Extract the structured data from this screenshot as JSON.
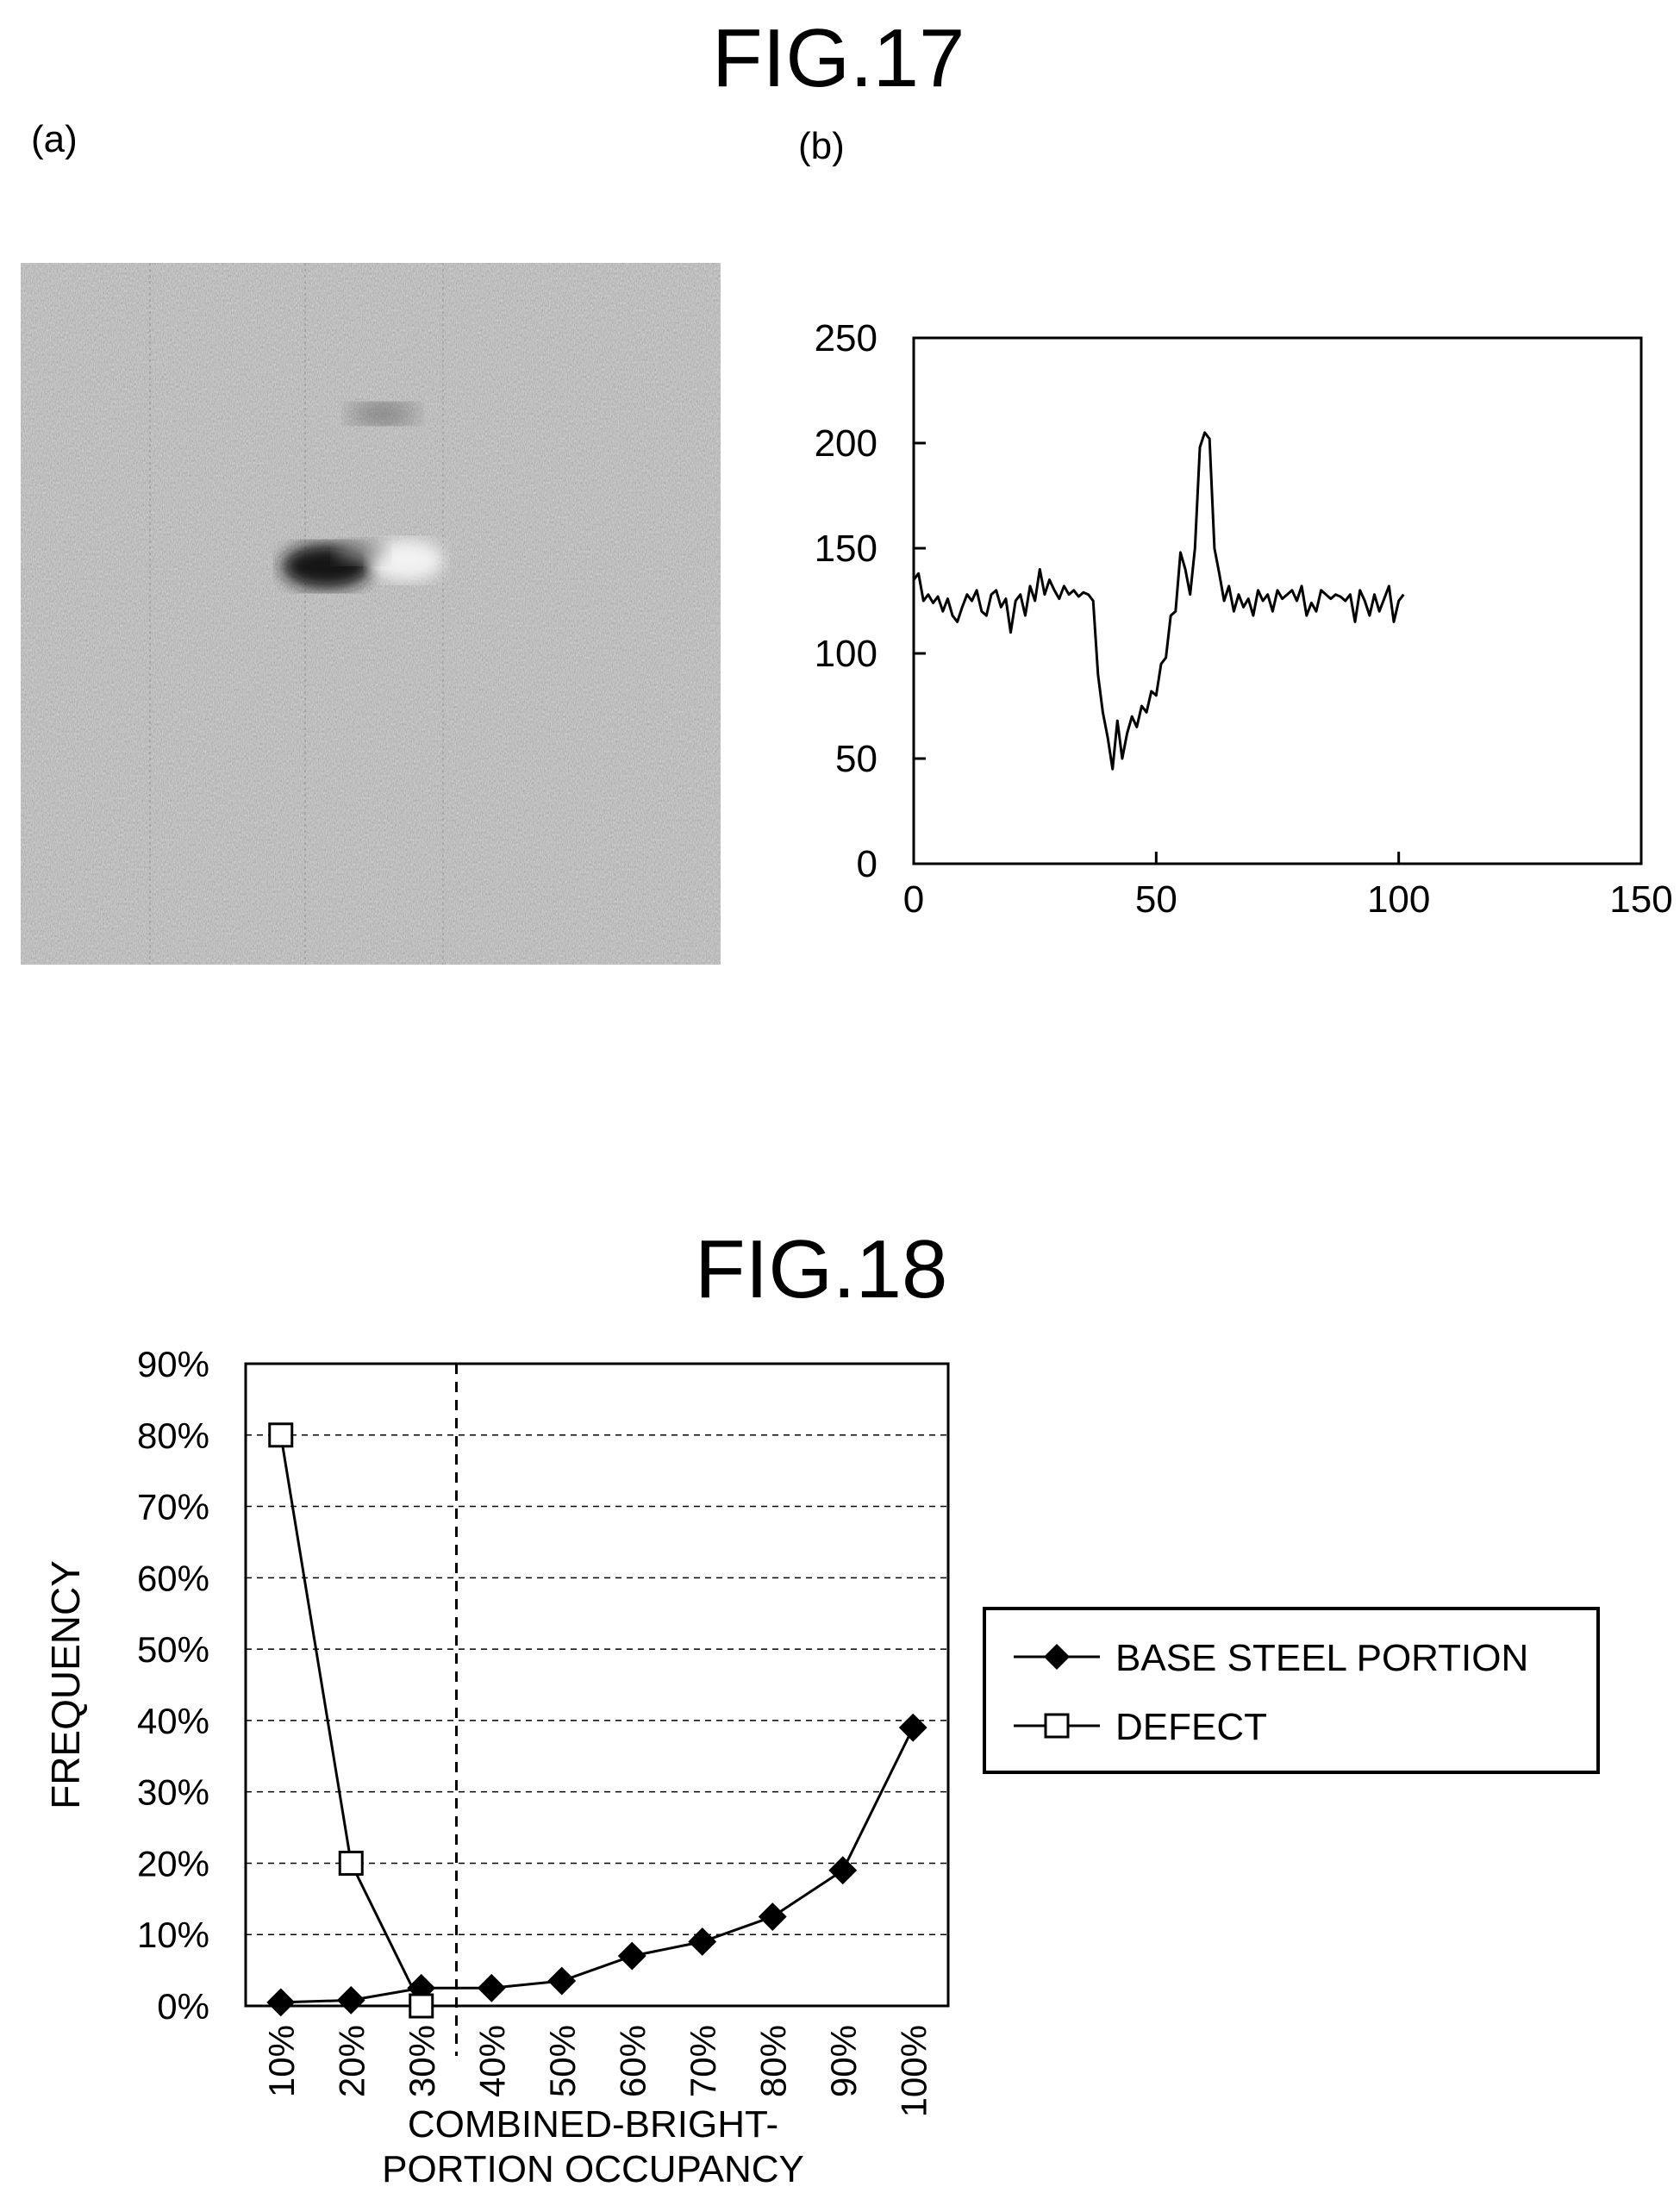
{
  "fig17": {
    "title": "FIG.17",
    "panel_a_label": "(a)",
    "panel_b_label": "(b)"
  },
  "fig18": {
    "title": "FIG.18"
  },
  "chart_data": [
    {
      "type": "line",
      "title": "",
      "xlabel": "",
      "ylabel": "",
      "xlim": [
        0,
        150
      ],
      "ylim": [
        0,
        250
      ],
      "x_ticks": [
        "0",
        "50",
        "100",
        "150"
      ],
      "y_ticks": [
        "0",
        "50",
        "100",
        "150",
        "200",
        "250"
      ],
      "grid": false,
      "series": [
        {
          "x": [
            0,
            1,
            2,
            3,
            4,
            5,
            6,
            7,
            8,
            9,
            10,
            11,
            12,
            13,
            14,
            15,
            16,
            17,
            18,
            19,
            20,
            21,
            22,
            23,
            24,
            25,
            26,
            27,
            28,
            29,
            30,
            31,
            32,
            33,
            34,
            35,
            36,
            37,
            38,
            39,
            40,
            41,
            42,
            43,
            44,
            45,
            46,
            47,
            48,
            49,
            50,
            51,
            52,
            53,
            54,
            55,
            56,
            57,
            58,
            59,
            60,
            61,
            62,
            63,
            64,
            65,
            66,
            67,
            68,
            69,
            70,
            71,
            72,
            73,
            74,
            75,
            76,
            77,
            78,
            79,
            80,
            81,
            82,
            83,
            84,
            85,
            86,
            87,
            88,
            89,
            90,
            91,
            92,
            93,
            94,
            95,
            96,
            97,
            98,
            99,
            100,
            101
          ],
          "y": [
            135,
            138,
            125,
            128,
            124,
            127,
            120,
            126,
            118,
            115,
            122,
            128,
            125,
            130,
            120,
            118,
            128,
            130,
            122,
            126,
            110,
            125,
            128,
            118,
            132,
            125,
            140,
            128,
            135,
            130,
            126,
            132,
            128,
            130,
            127,
            129,
            128,
            125,
            90,
            72,
            60,
            45,
            68,
            50,
            62,
            70,
            65,
            75,
            72,
            82,
            80,
            95,
            98,
            118,
            120,
            148,
            140,
            128,
            150,
            198,
            205,
            202,
            150,
            138,
            125,
            132,
            120,
            128,
            122,
            126,
            118,
            130,
            125,
            128,
            120,
            130,
            126,
            128,
            130,
            125,
            132,
            118,
            124,
            120,
            130,
            128,
            126,
            128,
            127,
            125,
            128,
            115,
            130,
            125,
            118,
            128,
            120,
            126,
            132,
            115,
            125,
            128
          ]
        }
      ]
    },
    {
      "type": "line",
      "title": "",
      "xlabel": "COMBINED-BRIGHT-PORTION OCCUPANCY",
      "xlabel_lines": [
        "COMBINED-BRIGHT-",
        "PORTION OCCUPANCY"
      ],
      "ylabel": "FREQUENCY",
      "categories": [
        "10%",
        "20%",
        "30%",
        "40%",
        "50%",
        "60%",
        "70%",
        "80%",
        "90%",
        "100%"
      ],
      "y_ticks": [
        "0%",
        "10%",
        "20%",
        "30%",
        "40%",
        "50%",
        "60%",
        "70%",
        "80%",
        "90%"
      ],
      "ylim": [
        0,
        90
      ],
      "grid": true,
      "threshold_x": 35,
      "legend_position": "right",
      "series": [
        {
          "name": "BASE STEEL PORTION",
          "marker": "filled-diamond",
          "values": [
            0.5,
            0.8,
            2.5,
            2.5,
            3.5,
            7,
            9,
            12.5,
            19,
            39
          ]
        },
        {
          "name": "DEFECT",
          "marker": "open-square",
          "values": [
            80,
            20,
            0,
            null,
            null,
            null,
            null,
            null,
            null,
            null
          ]
        }
      ]
    }
  ]
}
